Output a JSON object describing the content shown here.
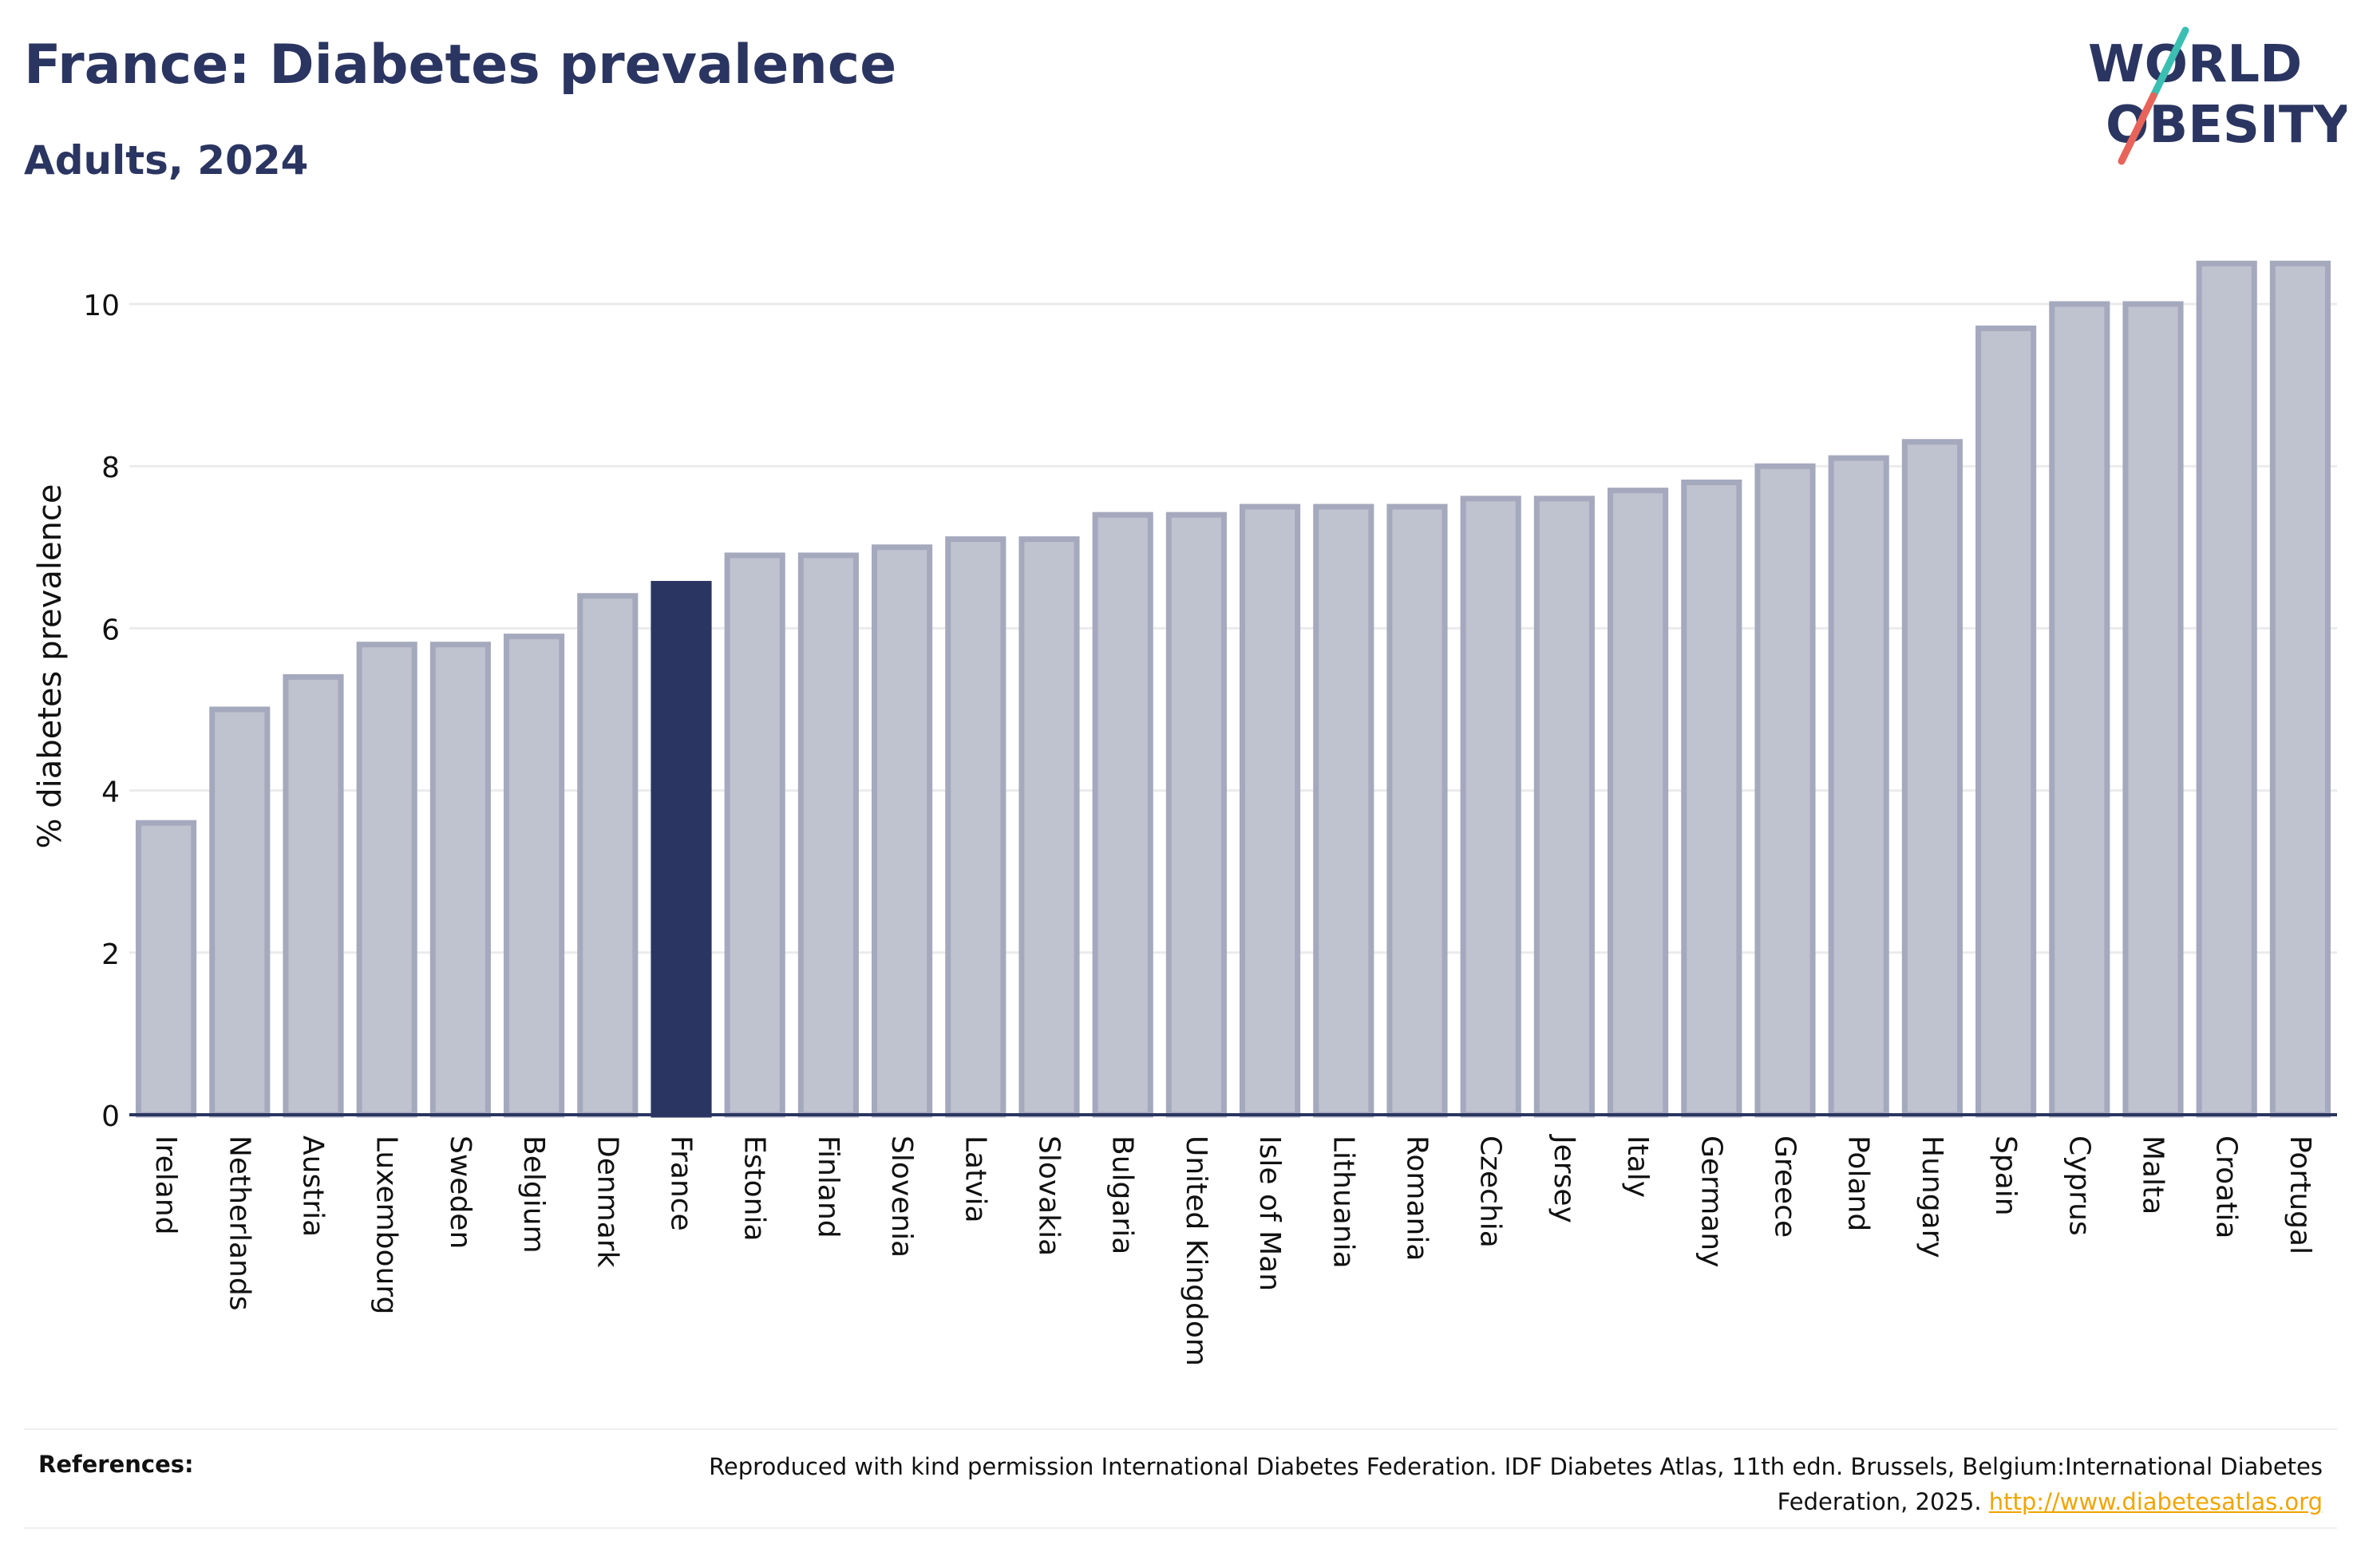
{
  "header": {
    "title": "France: Diabetes prevalence",
    "subtitle": "Adults, 2024"
  },
  "logo": {
    "line1": "WORLD",
    "line2": "OBESITY",
    "colors": {
      "text": "#2b3561",
      "slash_top": "#3bbfb3",
      "slash_bottom": "#e8645a"
    }
  },
  "chart_data": {
    "type": "bar",
    "ylabel": "% diabetes prevalence",
    "xlabel": "",
    "ylim": [
      0,
      11
    ],
    "yticks": [
      0,
      2,
      4,
      6,
      8,
      10
    ],
    "grid": true,
    "highlight": "France",
    "colors": {
      "bar": "#bfc2cf",
      "bar_border": "#a5a9bd",
      "highlight": "#2b3561",
      "grid": "#ebebeb",
      "axis": "#2b3561"
    },
    "categories": [
      "Ireland",
      "Netherlands",
      "Austria",
      "Luxembourg",
      "Sweden",
      "Belgium",
      "Denmark",
      "France",
      "Estonia",
      "Finland",
      "Slovenia",
      "Latvia",
      "Slovakia",
      "Bulgaria",
      "United Kingdom",
      "Isle of Man",
      "Lithuania",
      "Romania",
      "Czechia",
      "Jersey",
      "Italy",
      "Germany",
      "Greece",
      "Poland",
      "Hungary",
      "Spain",
      "Cyprus",
      "Malta",
      "Croatia",
      "Portugal"
    ],
    "values": [
      3.6,
      5.0,
      5.4,
      5.8,
      5.8,
      5.9,
      6.4,
      6.55,
      6.9,
      6.9,
      7.0,
      7.1,
      7.1,
      7.4,
      7.4,
      7.5,
      7.5,
      7.5,
      7.6,
      7.6,
      7.7,
      7.8,
      8.0,
      8.1,
      8.3,
      9.7,
      10.0,
      10.0,
      10.5,
      10.5
    ]
  },
  "references": {
    "label": "References:",
    "text": "Reproduced with kind permission International Diabetes Federation. IDF Diabetes Atlas, 11th edn. Brussels, Belgium:International Diabetes Federation, 2025.",
    "link": "http://www.diabetesatlas.org"
  }
}
